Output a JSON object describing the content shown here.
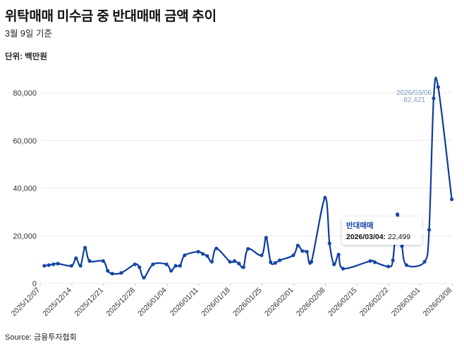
{
  "header": {
    "title": "위탁매매 미수금 중 반대매매 금액 추이",
    "subtitle": "3월 9일 기준",
    "unit": "단위: 백만원"
  },
  "footer": {
    "source": "Source: 금융투자협회"
  },
  "tooltip": {
    "series": "반대매매",
    "date": "2026/03/04:",
    "value": "22,499"
  },
  "annotation": {
    "date": "2026/03/06",
    "value": "82,421"
  },
  "colors": {
    "line": "#0d3d9b",
    "point": "#1646a8",
    "annotation": "#7f9cc9",
    "grid": "#e8e8e8"
  },
  "chart_data": {
    "type": "line",
    "title": "위탁매매 미수금 중 반대매매 금액 추이",
    "ylabel": "단위: 백만원",
    "ylim": [
      0,
      85000
    ],
    "yticks": [
      0,
      20000,
      40000,
      60000,
      80000
    ],
    "ytick_labels": [
      "0",
      "20,000",
      "40,000",
      "60,000",
      "80,000"
    ],
    "xlim": [
      "2025-12-07",
      "2026-03-09"
    ],
    "xtick_labels": [
      "2025/12/07",
      "2025/12/14",
      "2025/12/21",
      "2025/12/28",
      "2026/01/04",
      "2026/01/11",
      "2026/01/18",
      "2026/01/25",
      "2026/02/01",
      "2026/02/08",
      "2026/02/15",
      "2026/02/22",
      "2026/03/01",
      "2026/03/08"
    ],
    "grid": true,
    "series": [
      {
        "name": "반대매매",
        "x": [
          "2025-12-09",
          "2025-12-10",
          "2025-12-11",
          "2025-12-12",
          "2025-12-15",
          "2025-12-16",
          "2025-12-17",
          "2025-12-18",
          "2025-12-19",
          "2025-12-22",
          "2025-12-23",
          "2025-12-24",
          "2025-12-26",
          "2025-12-29",
          "2025-12-30",
          "2025-12-31",
          "2026-01-02",
          "2026-01-05",
          "2026-01-06",
          "2026-01-07",
          "2026-01-08",
          "2026-01-09",
          "2026-01-12",
          "2026-01-13",
          "2026-01-14",
          "2026-01-15",
          "2026-01-16",
          "2026-01-19",
          "2026-01-20",
          "2026-01-21",
          "2026-01-22",
          "2026-01-23",
          "2026-01-26",
          "2026-01-27",
          "2026-01-28",
          "2026-01-29",
          "2026-01-30",
          "2026-02-02",
          "2026-02-03",
          "2026-02-04",
          "2026-02-05",
          "2026-02-06",
          "2026-02-09",
          "2026-02-10",
          "2026-02-11",
          "2026-02-12",
          "2026-02-13",
          "2026-02-19",
          "2026-02-20",
          "2026-02-23",
          "2026-02-24",
          "2026-02-25",
          "2026-02-26",
          "2026-02-27",
          "2026-03-03",
          "2026-03-04",
          "2026-03-05",
          "2026-03-06",
          "2026-03-09"
        ],
        "values": [
          7400,
          7700,
          8000,
          8300,
          7400,
          10600,
          7400,
          15000,
          9400,
          9400,
          5300,
          4100,
          4400,
          8000,
          6800,
          2400,
          8000,
          8000,
          5300,
          7400,
          7400,
          11800,
          13300,
          12400,
          11500,
          9100,
          14700,
          9100,
          9400,
          8300,
          6800,
          14500,
          11800,
          19200,
          8900,
          8600,
          9700,
          11800,
          15900,
          13600,
          13300,
          9100,
          36000,
          16800,
          8000,
          12100,
          6200,
          9400,
          8900,
          7100,
          9700,
          29000,
          15600,
          7700,
          9100,
          22499,
          77700,
          82421,
          35300
        ]
      }
    ]
  }
}
